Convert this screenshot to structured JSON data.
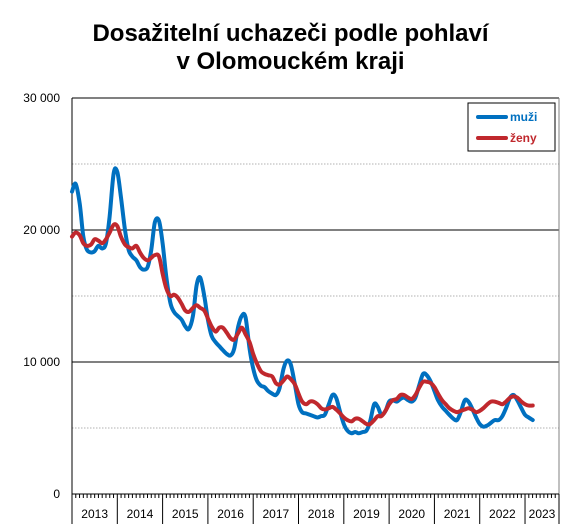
{
  "chart_data": {
    "type": "line",
    "title_lines": [
      "Dosažitelní uchazeči podle pohlaví",
      "v Olomouckém kraji"
    ],
    "xlabel": "",
    "ylabel": "",
    "ylim": [
      0,
      30000
    ],
    "yticks": [
      0,
      10000,
      20000,
      30000
    ],
    "ytick_labels": [
      "0",
      "10 000",
      "20 000",
      "30 000"
    ],
    "minor_grid": [
      5000,
      15000,
      25000
    ],
    "x_categories": [
      "2013",
      "2014",
      "2015",
      "2016",
      "2017",
      "2018",
      "2019",
      "2020",
      "2021",
      "2022",
      "2023"
    ],
    "x_start": 2013.0,
    "x_end": 2023.75,
    "legend_position": "top-right",
    "series": [
      {
        "name": "muži",
        "color": "#0070c0",
        "points": [
          [
            2013.0,
            22900
          ],
          [
            2013.08,
            23500
          ],
          [
            2013.17,
            22000
          ],
          [
            2013.25,
            19500
          ],
          [
            2013.33,
            18500
          ],
          [
            2013.42,
            18300
          ],
          [
            2013.5,
            18400
          ],
          [
            2013.58,
            18800
          ],
          [
            2013.67,
            18600
          ],
          [
            2013.75,
            19000
          ],
          [
            2013.83,
            21000
          ],
          [
            2013.92,
            24300
          ],
          [
            2014.0,
            24400
          ],
          [
            2014.08,
            22500
          ],
          [
            2014.17,
            20000
          ],
          [
            2014.25,
            18500
          ],
          [
            2014.33,
            18000
          ],
          [
            2014.42,
            17700
          ],
          [
            2014.5,
            17200
          ],
          [
            2014.58,
            17000
          ],
          [
            2014.67,
            17200
          ],
          [
            2014.75,
            18500
          ],
          [
            2014.83,
            20600
          ],
          [
            2014.92,
            20700
          ],
          [
            2015.0,
            19000
          ],
          [
            2015.08,
            16500
          ],
          [
            2015.17,
            14500
          ],
          [
            2015.25,
            13800
          ],
          [
            2015.33,
            13500
          ],
          [
            2015.42,
            13200
          ],
          [
            2015.5,
            12700
          ],
          [
            2015.58,
            12500
          ],
          [
            2015.67,
            13500
          ],
          [
            2015.75,
            15800
          ],
          [
            2015.83,
            16400
          ],
          [
            2015.92,
            15000
          ],
          [
            2016.0,
            13200
          ],
          [
            2016.08,
            12000
          ],
          [
            2016.17,
            11500
          ],
          [
            2016.25,
            11200
          ],
          [
            2016.33,
            10900
          ],
          [
            2016.42,
            10600
          ],
          [
            2016.5,
            10500
          ],
          [
            2016.58,
            11000
          ],
          [
            2016.67,
            12700
          ],
          [
            2016.75,
            13500
          ],
          [
            2016.83,
            13400
          ],
          [
            2016.92,
            11000
          ],
          [
            2017.0,
            9500
          ],
          [
            2017.08,
            8600
          ],
          [
            2017.17,
            8200
          ],
          [
            2017.25,
            8100
          ],
          [
            2017.33,
            7800
          ],
          [
            2017.42,
            7600
          ],
          [
            2017.5,
            7500
          ],
          [
            2017.58,
            8000
          ],
          [
            2017.67,
            9500
          ],
          [
            2017.75,
            10100
          ],
          [
            2017.83,
            9800
          ],
          [
            2017.92,
            8300
          ],
          [
            2018.0,
            6800
          ],
          [
            2018.08,
            6200
          ],
          [
            2018.17,
            6100
          ],
          [
            2018.25,
            6000
          ],
          [
            2018.33,
            5900
          ],
          [
            2018.42,
            5800
          ],
          [
            2018.5,
            5900
          ],
          [
            2018.58,
            6000
          ],
          [
            2018.67,
            6800
          ],
          [
            2018.75,
            7500
          ],
          [
            2018.83,
            7300
          ],
          [
            2018.92,
            6200
          ],
          [
            2019.0,
            5300
          ],
          [
            2019.08,
            4800
          ],
          [
            2019.17,
            4600
          ],
          [
            2019.25,
            4700
          ],
          [
            2019.33,
            4600
          ],
          [
            2019.42,
            4700
          ],
          [
            2019.5,
            4800
          ],
          [
            2019.58,
            5500
          ],
          [
            2019.67,
            6800
          ],
          [
            2019.75,
            6600
          ],
          [
            2019.83,
            6000
          ],
          [
            2019.92,
            6300
          ],
          [
            2020.0,
            7000
          ],
          [
            2020.08,
            7100
          ],
          [
            2020.17,
            7000
          ],
          [
            2020.25,
            7200
          ],
          [
            2020.33,
            7300
          ],
          [
            2020.42,
            7100
          ],
          [
            2020.5,
            7000
          ],
          [
            2020.58,
            7300
          ],
          [
            2020.67,
            8300
          ],
          [
            2020.75,
            9100
          ],
          [
            2020.83,
            9000
          ],
          [
            2020.92,
            8500
          ],
          [
            2021.0,
            7800
          ],
          [
            2021.08,
            7100
          ],
          [
            2021.17,
            6600
          ],
          [
            2021.25,
            6300
          ],
          [
            2021.33,
            6000
          ],
          [
            2021.42,
            5700
          ],
          [
            2021.5,
            5600
          ],
          [
            2021.58,
            6200
          ],
          [
            2021.67,
            7100
          ],
          [
            2021.75,
            7000
          ],
          [
            2021.83,
            6500
          ],
          [
            2021.92,
            5800
          ],
          [
            2022.0,
            5300
          ],
          [
            2022.08,
            5100
          ],
          [
            2022.17,
            5200
          ],
          [
            2022.25,
            5400
          ],
          [
            2022.33,
            5600
          ],
          [
            2022.42,
            5600
          ],
          [
            2022.5,
            5900
          ],
          [
            2022.58,
            6500
          ],
          [
            2022.67,
            7300
          ],
          [
            2022.75,
            7500
          ],
          [
            2022.83,
            7100
          ],
          [
            2022.92,
            6500
          ],
          [
            2023.0,
            6000
          ],
          [
            2023.08,
            5800
          ],
          [
            2023.17,
            5600
          ]
        ]
      },
      {
        "name": "ženy",
        "color": "#c0282d",
        "points": [
          [
            2013.0,
            19500
          ],
          [
            2013.08,
            19800
          ],
          [
            2013.17,
            19600
          ],
          [
            2013.25,
            19000
          ],
          [
            2013.33,
            18800
          ],
          [
            2013.42,
            18900
          ],
          [
            2013.5,
            19300
          ],
          [
            2013.58,
            19200
          ],
          [
            2013.67,
            19000
          ],
          [
            2013.75,
            19300
          ],
          [
            2013.83,
            19800
          ],
          [
            2013.92,
            20400
          ],
          [
            2014.0,
            20300
          ],
          [
            2014.08,
            19500
          ],
          [
            2014.17,
            18900
          ],
          [
            2014.25,
            18700
          ],
          [
            2014.33,
            18600
          ],
          [
            2014.42,
            18800
          ],
          [
            2014.5,
            18300
          ],
          [
            2014.58,
            17900
          ],
          [
            2014.67,
            17700
          ],
          [
            2014.75,
            17900
          ],
          [
            2014.83,
            18100
          ],
          [
            2014.92,
            18000
          ],
          [
            2015.0,
            16700
          ],
          [
            2015.08,
            15600
          ],
          [
            2015.17,
            15000
          ],
          [
            2015.25,
            15100
          ],
          [
            2015.33,
            14900
          ],
          [
            2015.42,
            14400
          ],
          [
            2015.5,
            13900
          ],
          [
            2015.58,
            13800
          ],
          [
            2015.67,
            14100
          ],
          [
            2015.75,
            14300
          ],
          [
            2015.83,
            14100
          ],
          [
            2015.92,
            13900
          ],
          [
            2016.0,
            13300
          ],
          [
            2016.08,
            12700
          ],
          [
            2016.17,
            12300
          ],
          [
            2016.25,
            12600
          ],
          [
            2016.33,
            12600
          ],
          [
            2016.42,
            12200
          ],
          [
            2016.5,
            11800
          ],
          [
            2016.58,
            11700
          ],
          [
            2016.67,
            12200
          ],
          [
            2016.75,
            12600
          ],
          [
            2016.83,
            12100
          ],
          [
            2016.92,
            11500
          ],
          [
            2017.0,
            10600
          ],
          [
            2017.08,
            9900
          ],
          [
            2017.17,
            9300
          ],
          [
            2017.25,
            9100
          ],
          [
            2017.33,
            9000
          ],
          [
            2017.42,
            8900
          ],
          [
            2017.5,
            8400
          ],
          [
            2017.58,
            8300
          ],
          [
            2017.67,
            8600
          ],
          [
            2017.75,
            8900
          ],
          [
            2017.83,
            8700
          ],
          [
            2017.92,
            8300
          ],
          [
            2018.0,
            7600
          ],
          [
            2018.08,
            7000
          ],
          [
            2018.17,
            6800
          ],
          [
            2018.25,
            7000
          ],
          [
            2018.33,
            7000
          ],
          [
            2018.42,
            6800
          ],
          [
            2018.5,
            6500
          ],
          [
            2018.58,
            6400
          ],
          [
            2018.67,
            6500
          ],
          [
            2018.75,
            6600
          ],
          [
            2018.83,
            6400
          ],
          [
            2018.92,
            6100
          ],
          [
            2019.0,
            5800
          ],
          [
            2019.08,
            5600
          ],
          [
            2019.17,
            5500
          ],
          [
            2019.25,
            5700
          ],
          [
            2019.33,
            5700
          ],
          [
            2019.42,
            5500
          ],
          [
            2019.5,
            5300
          ],
          [
            2019.58,
            5300
          ],
          [
            2019.67,
            5600
          ],
          [
            2019.75,
            5900
          ],
          [
            2019.83,
            5900
          ],
          [
            2019.92,
            6300
          ],
          [
            2020.0,
            6800
          ],
          [
            2020.08,
            7100
          ],
          [
            2020.17,
            7200
          ],
          [
            2020.25,
            7500
          ],
          [
            2020.33,
            7500
          ],
          [
            2020.42,
            7300
          ],
          [
            2020.5,
            7200
          ],
          [
            2020.58,
            7500
          ],
          [
            2020.67,
            8100
          ],
          [
            2020.75,
            8500
          ],
          [
            2020.83,
            8500
          ],
          [
            2020.92,
            8400
          ],
          [
            2021.0,
            8100
          ],
          [
            2021.08,
            7600
          ],
          [
            2021.17,
            7100
          ],
          [
            2021.25,
            6800
          ],
          [
            2021.33,
            6500
          ],
          [
            2021.42,
            6300
          ],
          [
            2021.5,
            6200
          ],
          [
            2021.58,
            6300
          ],
          [
            2021.67,
            6400
          ],
          [
            2021.75,
            6500
          ],
          [
            2021.83,
            6400
          ],
          [
            2021.92,
            6200
          ],
          [
            2022.0,
            6300
          ],
          [
            2022.08,
            6500
          ],
          [
            2022.17,
            6800
          ],
          [
            2022.25,
            7000
          ],
          [
            2022.33,
            7000
          ],
          [
            2022.42,
            6900
          ],
          [
            2022.5,
            6800
          ],
          [
            2022.58,
            7000
          ],
          [
            2022.67,
            7300
          ],
          [
            2022.75,
            7400
          ],
          [
            2022.83,
            7300
          ],
          [
            2022.92,
            7000
          ],
          [
            2023.0,
            6800
          ],
          [
            2023.08,
            6700
          ],
          [
            2023.17,
            6700
          ]
        ]
      }
    ]
  }
}
